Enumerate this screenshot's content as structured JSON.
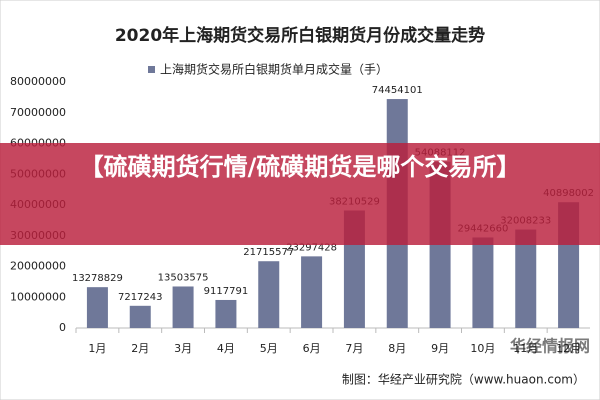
{
  "chart_data": {
    "type": "bar",
    "title": "2020年上海期货交易所白银期货月份成交量走势",
    "categories": [
      "1月",
      "2月",
      "3月",
      "4月",
      "5月",
      "6月",
      "7月",
      "8月",
      "9月",
      "10月",
      "11月",
      "12月"
    ],
    "series": [
      {
        "name": "上海期货交易所白银期货单月成交量（手）",
        "color": "#6f7899",
        "values": [
          13278829,
          7217243,
          13503575,
          9117791,
          21715577,
          23297428,
          38210529,
          74454101,
          54088112,
          29442660,
          32008233,
          40898002
        ]
      }
    ],
    "ylim": [
      0,
      80000000
    ],
    "yticks": [
      0,
      10000000,
      20000000,
      30000000,
      40000000,
      50000000,
      60000000,
      70000000,
      80000000
    ],
    "grid": false,
    "source": "制图：华经产业研究院（www.huaon.com）"
  },
  "overlay": {
    "banner": "【硫磺期货行情/硫磺期货是哪个交易所】",
    "watermark": "华经情报网"
  }
}
